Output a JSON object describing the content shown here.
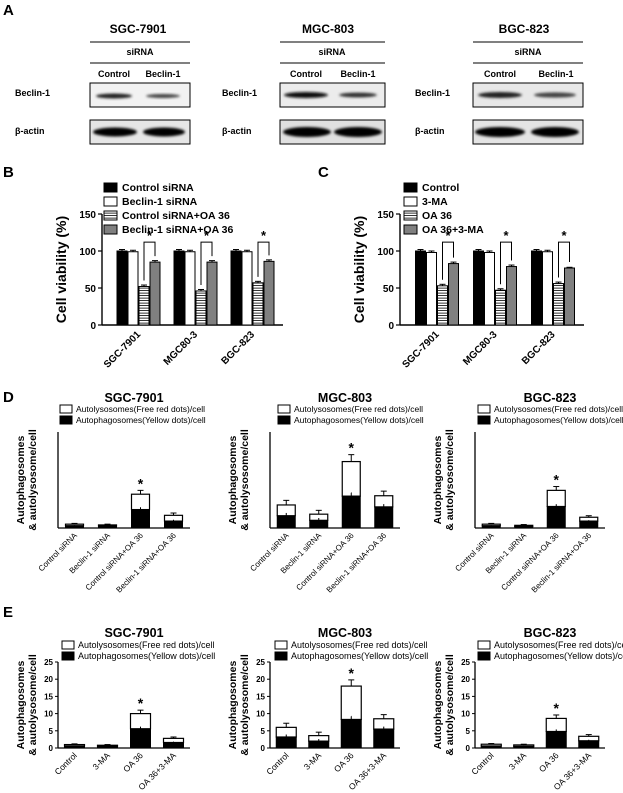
{
  "panel_letters": [
    "A",
    "B",
    "C",
    "D",
    "E"
  ],
  "panel_a": {
    "blots": [
      {
        "cell_line": "SGC-7901",
        "treatment_label": "siRNA",
        "lane_labels": [
          "Control",
          "Beclin-1"
        ],
        "row_labels": [
          "Beclin-1",
          "β-actin"
        ]
      },
      {
        "cell_line": "MGC-803",
        "treatment_label": "siRNA",
        "lane_labels": [
          "Control",
          "Beclin-1"
        ],
        "row_labels": [
          "Beclin-1",
          "β-actin"
        ]
      },
      {
        "cell_line": "BGC-823",
        "treatment_label": "siRNA",
        "lane_labels": [
          "Control",
          "Beclin-1"
        ],
        "row_labels": [
          "Beclin-1",
          "β-actin"
        ]
      }
    ]
  },
  "chart_data": [
    {
      "panel": "B",
      "type": "bar",
      "title": "",
      "ylabel": "Cell viability (%)",
      "ylim": [
        0,
        150
      ],
      "yticks": [
        0,
        50,
        100,
        150
      ],
      "categories": [
        "SGC-7901",
        "MGC80-3",
        "BGC-823"
      ],
      "legend_position": "top-left",
      "series": [
        {
          "name": "Control siRNA",
          "fill": "#000000",
          "pattern": "solid",
          "values": [
            100,
            100,
            100
          ],
          "errors": [
            2,
            2,
            2
          ]
        },
        {
          "name": "Beclin-1 siRNA",
          "fill": "#ffffff",
          "pattern": "open",
          "values": [
            99,
            99,
            99
          ],
          "errors": [
            2,
            2,
            2
          ]
        },
        {
          "name": "Control siRNA+OA 36",
          "fill": "#ffffff",
          "pattern": "hlines",
          "values": [
            52,
            46,
            57
          ],
          "errors": [
            2,
            2,
            2
          ]
        },
        {
          "name": "Beclin-1 siRNA+OA 36",
          "fill": "#808080",
          "pattern": "solid",
          "values": [
            85,
            85,
            86
          ],
          "errors": [
            2,
            2,
            2
          ]
        }
      ],
      "significance": [
        "*",
        "*",
        "*"
      ]
    },
    {
      "panel": "C",
      "type": "bar",
      "title": "",
      "ylabel": "Cell viability (%)",
      "ylim": [
        0,
        150
      ],
      "yticks": [
        0,
        50,
        100,
        150
      ],
      "categories": [
        "SGC-7901",
        "MGC80-3",
        "BGC-823"
      ],
      "legend_position": "top-left",
      "series": [
        {
          "name": "Control",
          "fill": "#000000",
          "pattern": "solid",
          "values": [
            100,
            100,
            100
          ],
          "errors": [
            2,
            2,
            2
          ]
        },
        {
          "name": "3-MA",
          "fill": "#ffffff",
          "pattern": "open",
          "values": [
            98,
            98,
            99
          ],
          "errors": [
            2,
            2,
            2
          ]
        },
        {
          "name": "OA 36",
          "fill": "#ffffff",
          "pattern": "hlines",
          "values": [
            53,
            47,
            56
          ],
          "errors": [
            2,
            2,
            2
          ]
        },
        {
          "name": "OA 36+3-MA",
          "fill": "#808080",
          "pattern": "solid",
          "values": [
            83,
            79,
            77
          ],
          "errors": [
            2,
            2,
            1
          ]
        }
      ],
      "significance": [
        "*",
        "*",
        "*"
      ]
    },
    {
      "panel": "D",
      "type": "bar",
      "stacked": true,
      "title": "SGC-7901",
      "ylabel": "Autophagosomes & autolysosome/cell",
      "ylim": [
        0,
        25
      ],
      "categories": [
        "Control siRNA",
        "Beclin-1 siRNA",
        "Control siRNA+OA 36",
        "Beclin-1 siRNA+OA 36"
      ],
      "series": [
        {
          "name": "Autophagosomes(Yellow dots)/cell",
          "fill": "#000000",
          "values": [
            0.6,
            0.5,
            4.8,
            1.8
          ]
        },
        {
          "name": "Autolysosomes(Free red dots)/cell",
          "fill": "#ffffff",
          "values": [
            0.4,
            0.3,
            4.0,
            1.5
          ]
        }
      ],
      "errors": [
        0.2,
        0.2,
        1.0,
        0.6
      ],
      "stars": [
        "",
        "",
        "*",
        ""
      ]
    },
    {
      "panel": "D",
      "type": "bar",
      "stacked": true,
      "title": "MGC-803",
      "ylabel": "Autophagosomes & autolysosome/cell",
      "ylim": [
        0,
        25
      ],
      "categories": [
        "Control siRNA",
        "Beclin-1 siRNA",
        "Control siRNA+OA 36",
        "Beclin-1 siRNA+OA 36"
      ],
      "series": [
        {
          "name": "Autophagosomes(Yellow dots)/cell",
          "fill": "#000000",
          "values": [
            3.2,
            2.0,
            8.3,
            5.5
          ]
        },
        {
          "name": "Autolysosomes(Free red dots)/cell",
          "fill": "#ffffff",
          "values": [
            2.8,
            1.6,
            9.0,
            2.9
          ]
        }
      ],
      "errors": [
        1.2,
        1.0,
        1.8,
        1.2
      ],
      "stars": [
        "",
        "",
        "*",
        ""
      ]
    },
    {
      "panel": "D",
      "type": "bar",
      "stacked": true,
      "title": "BGC-823",
      "ylabel": "Autophagosomes & autolysosome/cell",
      "ylim": [
        0,
        25
      ],
      "categories": [
        "Control siRNA",
        "Beclin-1 siRNA",
        "Control siRNA+OA 36",
        "Beclin-1 siRNA+OA 36"
      ],
      "series": [
        {
          "name": "Autophagosomes(Yellow dots)/cell",
          "fill": "#000000",
          "values": [
            0.6,
            0.4,
            5.6,
            1.8
          ]
        },
        {
          "name": "Autolysosomes(Free red dots)/cell",
          "fill": "#ffffff",
          "values": [
            0.4,
            0.3,
            4.2,
            1.0
          ]
        }
      ],
      "errors": [
        0.2,
        0.2,
        1.0,
        0.4
      ],
      "stars": [
        "",
        "",
        "*",
        ""
      ]
    },
    {
      "panel": "E",
      "type": "bar",
      "stacked": true,
      "title": "SGC-7901",
      "ylabel": "Autophagosomes & autolysosome/cell",
      "ylim": [
        0,
        25
      ],
      "yticks": [
        0,
        5,
        10,
        15,
        20,
        25
      ],
      "categories": [
        "Control",
        "3-MA",
        "OA 36",
        "OA 36+3-MA"
      ],
      "series": [
        {
          "name": "Autophagosomes(Yellow dots)/cell",
          "fill": "#000000",
          "values": [
            0.6,
            0.5,
            5.6,
            1.6
          ]
        },
        {
          "name": "Autolysosomes(Free red dots)/cell",
          "fill": "#ffffff",
          "values": [
            0.4,
            0.3,
            4.4,
            1.2
          ]
        }
      ],
      "errors": [
        0.2,
        0.2,
        1.0,
        0.4
      ],
      "stars": [
        "",
        "",
        "*",
        ""
      ]
    },
    {
      "panel": "E",
      "type": "bar",
      "stacked": true,
      "title": "MGC-803",
      "ylabel": "Autophagosomes & autolysosome/cell",
      "ylim": [
        0,
        25
      ],
      "yticks": [
        0,
        5,
        10,
        15,
        20,
        25
      ],
      "categories": [
        "Control",
        "3-MA",
        "OA 36",
        "OA 36+3-MA"
      ],
      "series": [
        {
          "name": "Autophagosomes(Yellow dots)/cell",
          "fill": "#000000",
          "values": [
            3.2,
            2.0,
            8.3,
            5.5
          ]
        },
        {
          "name": "Autolysosomes(Free red dots)/cell",
          "fill": "#ffffff",
          "values": [
            2.8,
            1.6,
            9.7,
            3.0
          ]
        }
      ],
      "errors": [
        1.2,
        1.0,
        1.8,
        1.2
      ],
      "stars": [
        "",
        "",
        "*",
        ""
      ]
    },
    {
      "panel": "E",
      "type": "bar",
      "stacked": true,
      "title": "BGC-823",
      "ylabel": "Autophagosomes & autolysosome/cell",
      "ylim": [
        0,
        25
      ],
      "yticks": [
        0,
        5,
        10,
        15,
        20,
        25
      ],
      "categories": [
        "Control",
        "3-MA",
        "OA 36",
        "OA 36+3-MA"
      ],
      "series": [
        {
          "name": "Autophagosomes(Yellow dots)/cell",
          "fill": "#000000",
          "values": [
            0.6,
            0.5,
            4.8,
            2.1
          ]
        },
        {
          "name": "Autolysosomes(Free red dots)/cell",
          "fill": "#ffffff",
          "values": [
            0.5,
            0.4,
            3.8,
            1.3
          ]
        }
      ],
      "errors": [
        0.2,
        0.2,
        1.0,
        0.5
      ],
      "stars": [
        "",
        "",
        "*",
        ""
      ]
    }
  ]
}
